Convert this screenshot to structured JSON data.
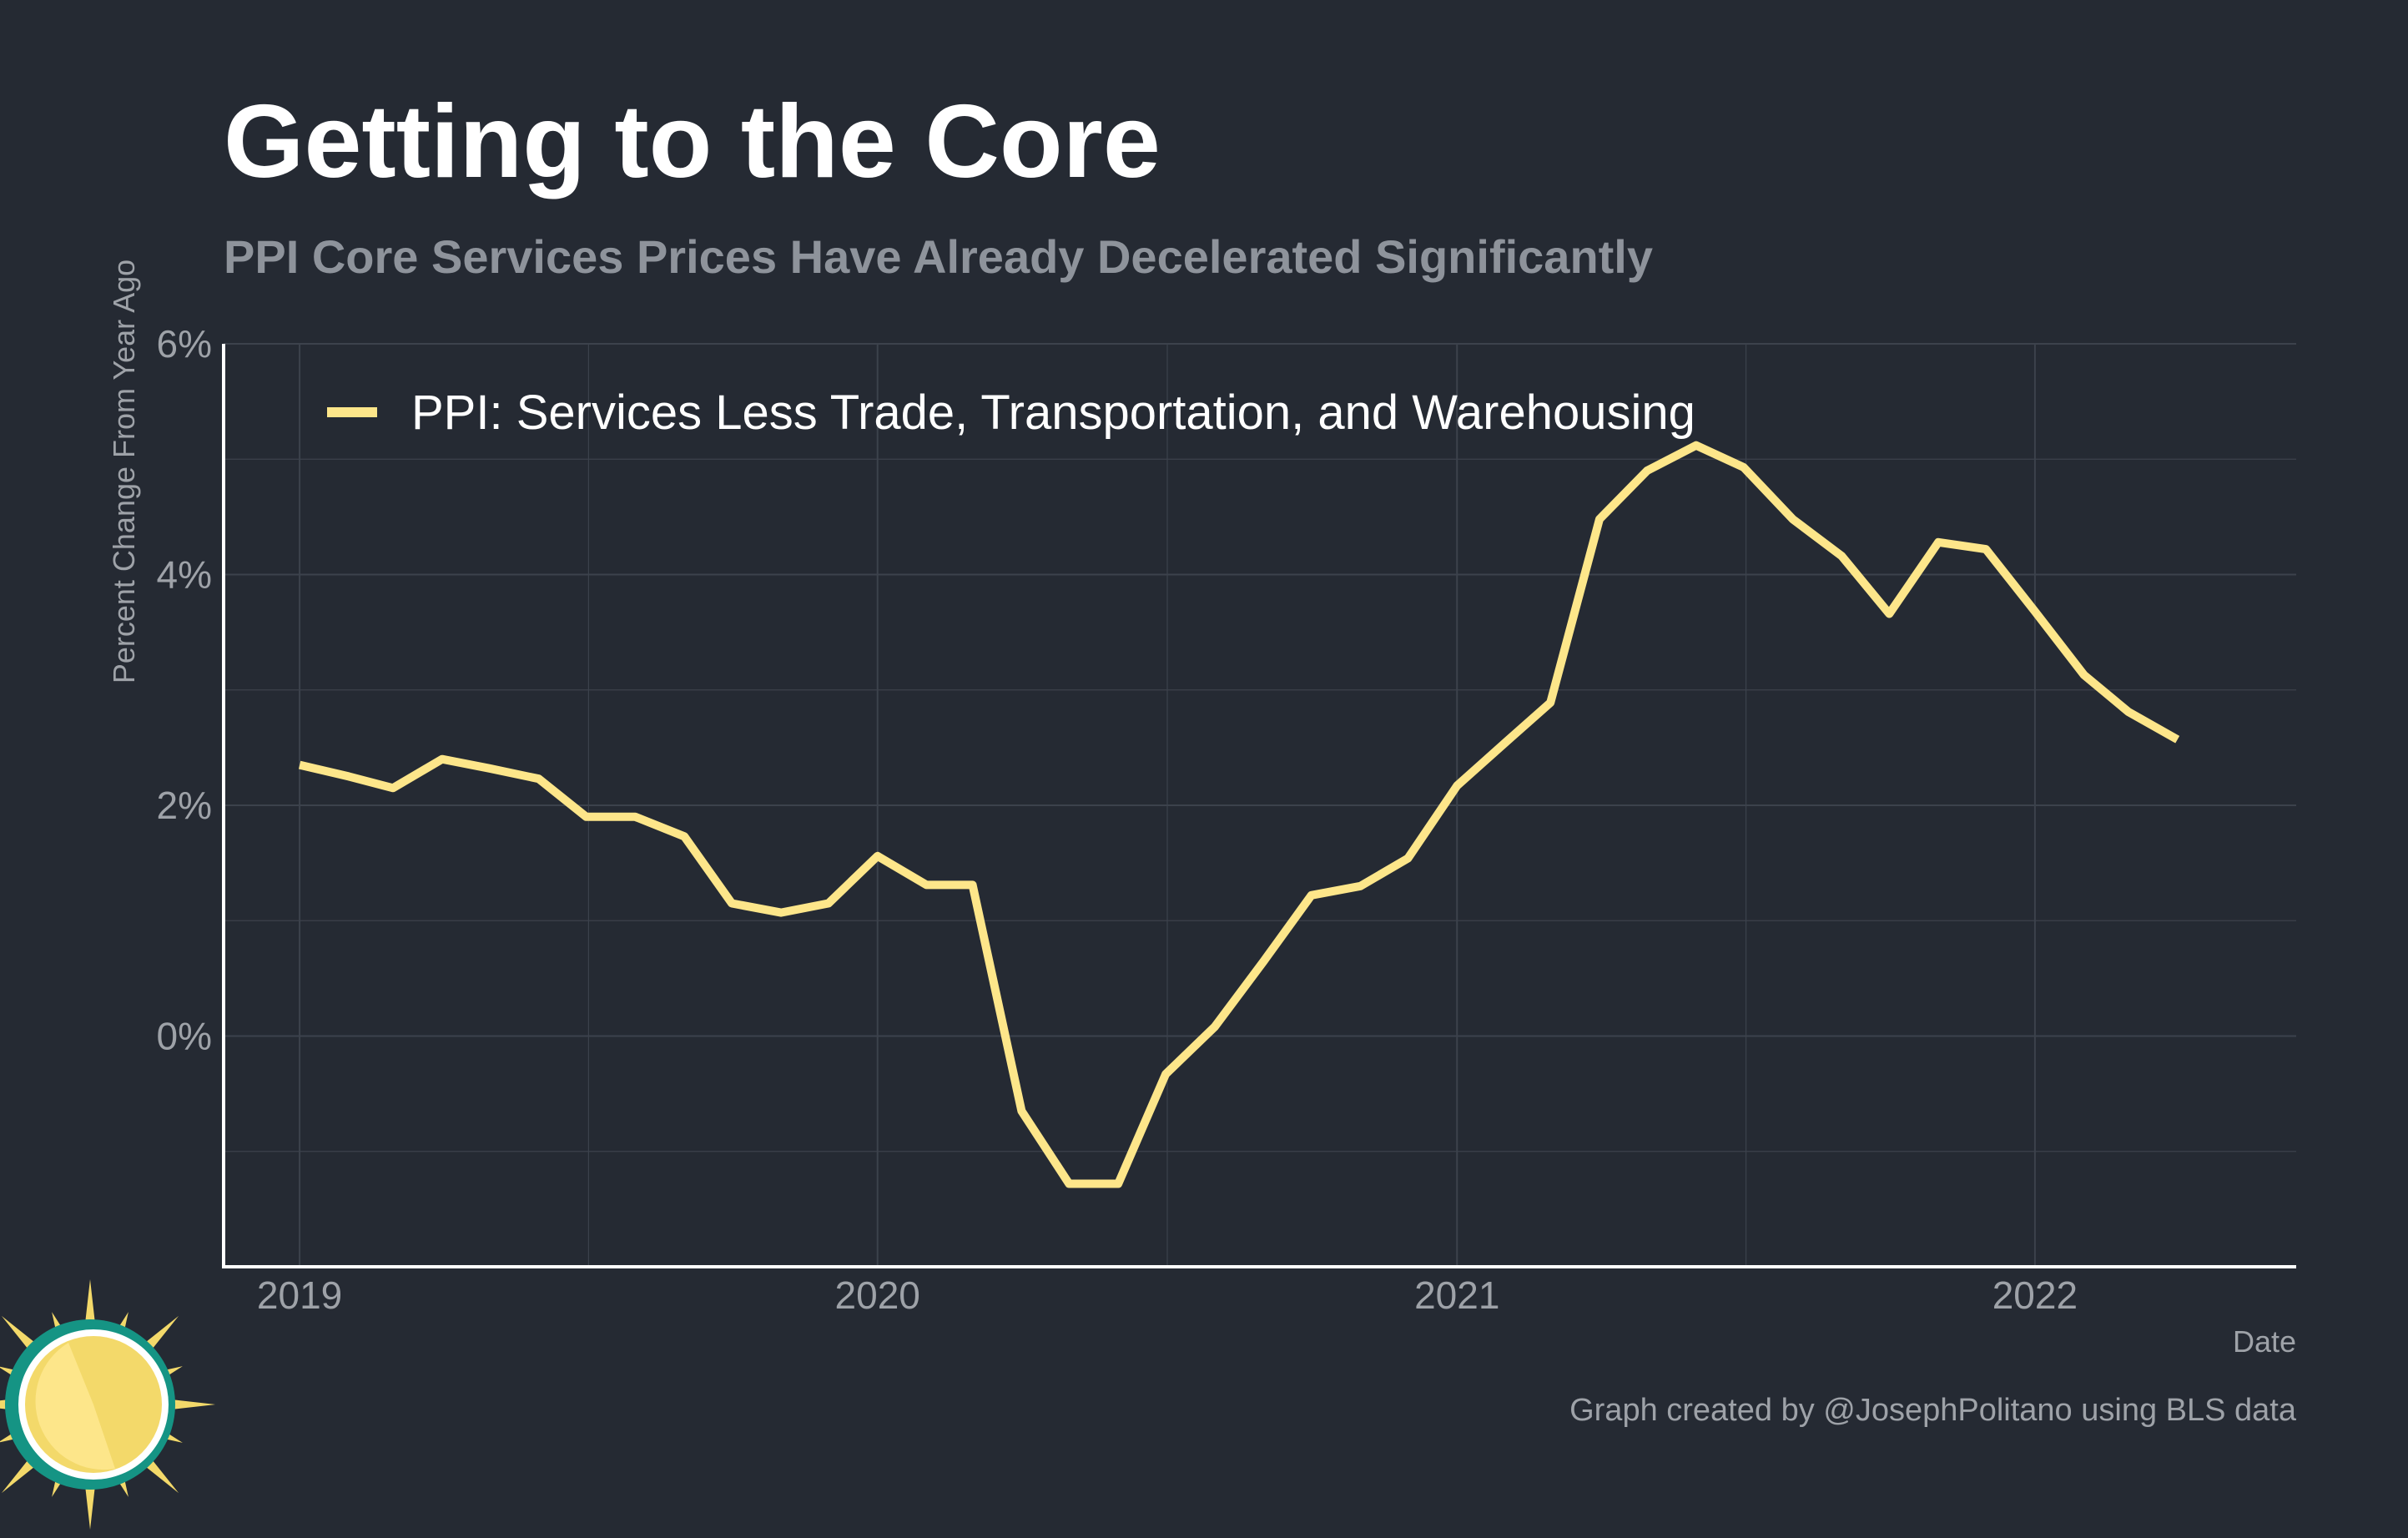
{
  "header": {
    "title": "Getting to the Core",
    "subtitle": "PPI Core Services Prices Have Already Decelerated Significantly"
  },
  "caption": "Graph created by @JosephPolitano using BLS data",
  "logo": {
    "icon": "sun-clock-logo-icon"
  },
  "colors": {
    "background": "#252a33",
    "line": "#fde68a",
    "grid": "#3c424c",
    "axis": "#ffffff"
  },
  "chart_data": {
    "type": "line",
    "title": "Getting to the Core",
    "subtitle": "PPI Core Services Prices Have Already Decelerated Significantly",
    "xlabel": "Date",
    "ylabel": "Percent Change From Year Ago",
    "ylim": [
      -2,
      6
    ],
    "yticks": [
      0,
      2,
      4,
      6
    ],
    "ytick_labels": [
      "0%",
      "2%",
      "4%",
      "6%"
    ],
    "xlim": [
      "2018-11-14",
      "2022-06-15"
    ],
    "xticks": [
      "2019-01-01",
      "2020-01-01",
      "2021-01-01",
      "2022-01-01"
    ],
    "xtick_labels": [
      "2019",
      "2020",
      "2021",
      "2022"
    ],
    "grid": true,
    "legend_position": "top-left",
    "series": [
      {
        "name": "PPI: Services Less Trade, Transportation, and Warehousing",
        "color": "#fde68a",
        "x": [
          "2019-01",
          "2019-02",
          "2019-03",
          "2019-04",
          "2019-05",
          "2019-06",
          "2019-07",
          "2019-08",
          "2019-09",
          "2019-10",
          "2019-11",
          "2019-12",
          "2020-01",
          "2020-02",
          "2020-03",
          "2020-04",
          "2020-05",
          "2020-06",
          "2020-07",
          "2020-08",
          "2020-09",
          "2020-10",
          "2020-11",
          "2020-12",
          "2021-01",
          "2021-02",
          "2021-03",
          "2021-04",
          "2021-05",
          "2021-06",
          "2021-07",
          "2021-08",
          "2021-09",
          "2021-10",
          "2021-11",
          "2021-12",
          "2022-01",
          "2022-02",
          "2022-03",
          "2022-04"
        ],
        "values": [
          2.35,
          2.25,
          2.15,
          2.4,
          2.32,
          2.23,
          1.9,
          1.9,
          1.73,
          1.15,
          1.07,
          1.15,
          1.56,
          1.31,
          1.31,
          -0.65,
          -1.28,
          -1.28,
          -0.33,
          0.08,
          0.65,
          1.22,
          1.3,
          1.54,
          2.17,
          2.55,
          2.89,
          4.48,
          4.9,
          5.12,
          4.93,
          4.48,
          4.16,
          3.66,
          4.28,
          4.22,
          3.68,
          3.13,
          2.81,
          2.57
        ]
      }
    ]
  }
}
